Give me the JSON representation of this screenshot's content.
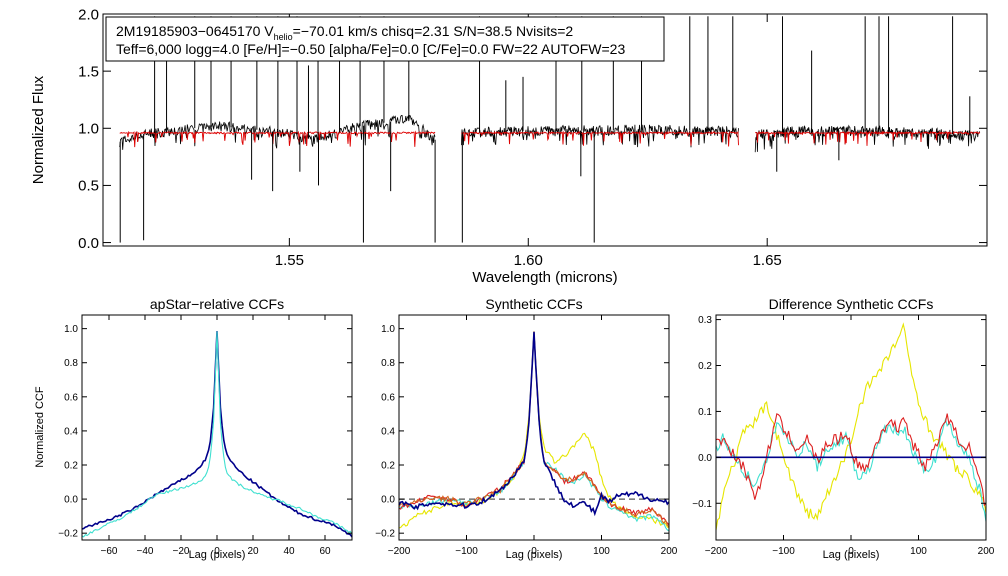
{
  "info_box": {
    "line1_prefix": "2M19185903−0645170  V",
    "line1_sub": "helio",
    "line1_suffix": "=−70.01 km/s  chisq=2.31  S/N=38.5  Nvisits=2",
    "line2": "Teff=6,000 logg=4.0 [Fe/H]=−0.50 [alpha/Fe]=0.0 [C/Fe]=0.0 FW=22 AUTOFW=23"
  },
  "colors": {
    "spectrum": "#000000",
    "model": "#dd0000",
    "navy": "#00008b",
    "cyan": "#40e0d0",
    "yellow": "#e6e600",
    "red": "#dd2222",
    "orange": "#d2691e",
    "green": "#22aa22",
    "zero_line": "#555555"
  },
  "chart_data": [
    {
      "id": "spectrum",
      "type": "line",
      "title": "",
      "xlabel": "Wavelength (microns)",
      "ylabel": "Normalized Flux",
      "xlim": [
        1.511,
        1.696
      ],
      "ylim": [
        -0.03,
        2.0
      ],
      "xticks": [
        1.55,
        1.6,
        1.65
      ],
      "xtick_labels": [
        "1.55",
        "1.60",
        "1.65"
      ],
      "yticks": [
        0.0,
        0.5,
        1.0,
        1.5,
        2.0
      ],
      "ytick_labels": [
        "0.0",
        "0.5",
        "1.0",
        "1.5",
        "2.0"
      ],
      "chips": [
        {
          "range": [
            1.5145,
            1.5805
          ],
          "x": [
            1.5145,
            1.519,
            1.525,
            1.53,
            1.535,
            1.54,
            1.545,
            1.55,
            1.555,
            1.56,
            1.565,
            1.57,
            1.575,
            1.5805
          ],
          "y": [
            0.88,
            0.95,
            0.97,
            1.0,
            1.02,
            1.0,
            0.98,
            0.95,
            0.9,
            0.96,
            1.02,
            1.05,
            1.08,
            0.9
          ]
        },
        {
          "range": [
            1.586,
            1.644
          ],
          "x": [
            1.586,
            1.595,
            1.605,
            1.615,
            1.625,
            1.635,
            1.644
          ],
          "y": [
            0.96,
            0.97,
            0.98,
            0.98,
            0.99,
            0.98,
            0.97
          ]
        },
        {
          "range": [
            1.6475,
            1.6945
          ],
          "x": [
            1.6475,
            1.655,
            1.665,
            1.675,
            1.685,
            1.6945
          ],
          "y": [
            0.95,
            0.97,
            0.98,
            0.97,
            0.96,
            0.93
          ]
        }
      ],
      "model_level": 0.96,
      "emission_spikes": [
        {
          "x": 1.5218,
          "y": 1.98
        },
        {
          "x": 1.5243,
          "y": 1.62
        },
        {
          "x": 1.5302,
          "y": 1.98
        },
        {
          "x": 1.5336,
          "y": 1.98
        },
        {
          "x": 1.5378,
          "y": 1.98
        },
        {
          "x": 1.5432,
          "y": 1.98
        },
        {
          "x": 1.5476,
          "y": 1.98
        },
        {
          "x": 1.5516,
          "y": 1.98
        },
        {
          "x": 1.554,
          "y": 1.55
        },
        {
          "x": 1.556,
          "y": 1.75
        },
        {
          "x": 1.5605,
          "y": 1.62
        },
        {
          "x": 1.5648,
          "y": 1.98
        },
        {
          "x": 1.5698,
          "y": 1.98
        },
        {
          "x": 1.575,
          "y": 1.62
        },
        {
          "x": 1.5898,
          "y": 1.98
        },
        {
          "x": 1.5953,
          "y": 1.42
        },
        {
          "x": 1.5989,
          "y": 1.45
        },
        {
          "x": 1.6058,
          "y": 1.98
        },
        {
          "x": 1.6112,
          "y": 1.98
        },
        {
          "x": 1.6178,
          "y": 1.98
        },
        {
          "x": 1.6237,
          "y": 1.98
        },
        {
          "x": 1.6338,
          "y": 1.98
        },
        {
          "x": 1.6376,
          "y": 1.98
        },
        {
          "x": 1.6428,
          "y": 1.98
        },
        {
          "x": 1.6532,
          "y": 1.98
        },
        {
          "x": 1.6593,
          "y": 1.68
        },
        {
          "x": 1.6705,
          "y": 1.98
        },
        {
          "x": 1.6734,
          "y": 1.98
        },
        {
          "x": 1.6754,
          "y": 1.98
        },
        {
          "x": 1.6888,
          "y": 1.98
        },
        {
          "x": 1.6924,
          "y": 1.28
        }
      ],
      "absorption_spikes": [
        {
          "x": 1.5146,
          "y": 0.0
        },
        {
          "x": 1.5195,
          "y": 0.02
        },
        {
          "x": 1.5421,
          "y": 0.55
        },
        {
          "x": 1.5465,
          "y": 0.45
        },
        {
          "x": 1.5522,
          "y": 0.62
        },
        {
          "x": 1.5561,
          "y": 0.5
        },
        {
          "x": 1.5655,
          "y": 0.0
        },
        {
          "x": 1.5712,
          "y": 0.45
        },
        {
          "x": 1.5805,
          "y": 0.0
        },
        {
          "x": 1.5862,
          "y": 0.0
        },
        {
          "x": 1.611,
          "y": 0.58
        },
        {
          "x": 1.6138,
          "y": 0.0
        },
        {
          "x": 1.652,
          "y": 0.62
        },
        {
          "x": 1.665,
          "y": 0.72
        }
      ]
    },
    {
      "id": "apstar-ccf",
      "type": "line",
      "title": "apStar−relative CCFs",
      "xlabel": "Lag (pixels)",
      "ylabel": "Normalized CCF",
      "xlim": [
        -75,
        75
      ],
      "ylim": [
        -0.24,
        1.08
      ],
      "xticks": [
        -60,
        -40,
        -20,
        0,
        20,
        40,
        60
      ],
      "xtick_labels": [
        "−60",
        "−40",
        "−20",
        "0",
        "20",
        "40",
        "60"
      ],
      "yticks": [
        -0.2,
        0.0,
        0.2,
        0.4,
        0.6,
        0.8,
        1.0
      ],
      "ytick_labels": [
        "−0.2",
        "0.0",
        "0.2",
        "0.4",
        "0.6",
        "0.8",
        "1.0"
      ],
      "series": [
        {
          "name": "navy",
          "color_key": "navy",
          "x": [
            -75,
            -65,
            -55,
            -45,
            -35,
            -25,
            -15,
            -10,
            -6,
            -4,
            -2,
            -1,
            0,
            1,
            2,
            4,
            6,
            10,
            15,
            25,
            35,
            45,
            55,
            65,
            75
          ],
          "y": [
            -0.17,
            -0.14,
            -0.1,
            -0.05,
            0.02,
            0.08,
            0.14,
            0.18,
            0.24,
            0.32,
            0.5,
            0.75,
            0.99,
            0.75,
            0.5,
            0.32,
            0.25,
            0.19,
            0.14,
            0.06,
            -0.02,
            -0.08,
            -0.12,
            -0.15,
            -0.22
          ]
        },
        {
          "name": "cyan",
          "color_key": "cyan",
          "x": [
            -75,
            -65,
            -55,
            -45,
            -35,
            -25,
            -15,
            -10,
            -6,
            -4,
            -2,
            -1,
            0,
            1,
            2,
            4,
            6,
            10,
            15,
            25,
            35,
            45,
            55,
            65,
            75
          ],
          "y": [
            -0.22,
            -0.17,
            -0.12,
            -0.06,
            0.02,
            0.05,
            0.08,
            0.1,
            0.14,
            0.22,
            0.42,
            0.7,
            0.99,
            0.7,
            0.42,
            0.22,
            0.14,
            0.1,
            0.07,
            0.02,
            -0.01,
            -0.05,
            -0.1,
            -0.14,
            -0.2
          ]
        }
      ]
    },
    {
      "id": "synthetic-ccf",
      "type": "line",
      "title": "Synthetic CCFs",
      "xlabel": "Lag (pixels)",
      "ylabel": "",
      "xlim": [
        -200,
        200
      ],
      "ylim": [
        -0.24,
        1.08
      ],
      "xticks": [
        -200,
        -100,
        0,
        100,
        200
      ],
      "xtick_labels": [
        "−200",
        "−100",
        "0",
        "100",
        "200"
      ],
      "yticks": [
        -0.2,
        0.0,
        0.2,
        0.4,
        0.6,
        0.8,
        1.0
      ],
      "ytick_labels": [
        "−0.2",
        "0.0",
        "0.2",
        "0.4",
        "0.6",
        "0.8",
        "1.0"
      ],
      "zero_line": 0.0,
      "series": [
        {
          "name": "yellow",
          "color_key": "yellow",
          "x": [
            -200,
            -175,
            -150,
            -125,
            -100,
            -75,
            -50,
            -30,
            -15,
            -8,
            -3,
            0,
            3,
            8,
            15,
            30,
            45,
            60,
            75,
            90,
            100,
            110,
            125,
            150,
            175,
            200
          ],
          "y": [
            -0.18,
            -0.1,
            -0.06,
            -0.02,
            -0.03,
            -0.01,
            0.05,
            0.13,
            0.25,
            0.45,
            0.78,
            0.99,
            0.78,
            0.45,
            0.3,
            0.22,
            0.25,
            0.32,
            0.38,
            0.28,
            0.12,
            0.02,
            -0.05,
            -0.1,
            -0.12,
            -0.16
          ]
        },
        {
          "name": "cyan",
          "color_key": "cyan",
          "x": [
            -200,
            -175,
            -150,
            -125,
            -100,
            -75,
            -50,
            -30,
            -15,
            -8,
            -3,
            0,
            3,
            8,
            15,
            30,
            45,
            60,
            75,
            90,
            100,
            110,
            125,
            150,
            175,
            200
          ],
          "y": [
            -0.05,
            -0.04,
            -0.02,
            0.0,
            -0.02,
            0.0,
            0.04,
            0.14,
            0.22,
            0.42,
            0.75,
            0.99,
            0.75,
            0.42,
            0.22,
            0.18,
            0.12,
            0.1,
            0.14,
            0.06,
            0.0,
            -0.04,
            -0.06,
            -0.12,
            -0.1,
            -0.18
          ]
        },
        {
          "name": "red",
          "color_key": "red",
          "x": [
            -200,
            -175,
            -150,
            -125,
            -100,
            -75,
            -50,
            -30,
            -15,
            -8,
            -3,
            0,
            3,
            8,
            15,
            30,
            45,
            60,
            75,
            90,
            100,
            110,
            125,
            150,
            175,
            200
          ],
          "y": [
            -0.05,
            -0.02,
            0.02,
            0.0,
            -0.04,
            0.01,
            0.06,
            0.15,
            0.22,
            0.42,
            0.75,
            0.99,
            0.75,
            0.42,
            0.22,
            0.17,
            0.1,
            0.12,
            0.16,
            0.08,
            0.02,
            -0.02,
            -0.05,
            -0.08,
            -0.06,
            -0.14
          ]
        },
        {
          "name": "orange",
          "color_key": "orange",
          "x": [
            -200,
            -175,
            -150,
            -125,
            -100,
            -75,
            -50,
            -30,
            -15,
            -8,
            -3,
            0,
            3,
            8,
            15,
            30,
            45,
            60,
            75,
            90,
            100,
            110,
            125,
            150,
            175,
            200
          ],
          "y": [
            -0.04,
            -0.02,
            0.01,
            0.0,
            -0.03,
            0.01,
            0.05,
            0.15,
            0.22,
            0.42,
            0.75,
            0.99,
            0.75,
            0.42,
            0.22,
            0.17,
            0.11,
            0.12,
            0.15,
            0.08,
            0.02,
            -0.02,
            -0.05,
            -0.09,
            -0.07,
            -0.15
          ]
        },
        {
          "name": "navy",
          "color_key": "navy",
          "x": [
            -200,
            -175,
            -150,
            -125,
            -100,
            -75,
            -50,
            -30,
            -15,
            -8,
            -3,
            0,
            3,
            8,
            15,
            30,
            45,
            60,
            75,
            90,
            100,
            110,
            125,
            150,
            175,
            200
          ],
          "y": [
            -0.02,
            -0.05,
            -0.02,
            -0.03,
            -0.04,
            -0.01,
            0.05,
            0.14,
            0.22,
            0.42,
            0.75,
            0.99,
            0.75,
            0.42,
            0.22,
            0.1,
            0.0,
            -0.04,
            -0.02,
            -0.08,
            0.02,
            -0.02,
            0.02,
            0.03,
            0.0,
            -0.02
          ]
        }
      ]
    },
    {
      "id": "difference-ccf",
      "type": "line",
      "title": "Difference Synthetic CCFs",
      "xlabel": "Lag (pixels)",
      "ylabel": "",
      "xlim": [
        -200,
        200
      ],
      "ylim": [
        -0.18,
        0.31
      ],
      "xticks": [
        -200,
        -100,
        0,
        100,
        200
      ],
      "xtick_labels": [
        "−200",
        "−100",
        "0",
        "100",
        "200"
      ],
      "yticks": [
        -0.1,
        0.0,
        0.1,
        0.2,
        0.3
      ],
      "ytick_labels": [
        "−0.1",
        "0.0",
        "0.1",
        "0.2",
        "0.3"
      ],
      "zero_line": 0.0,
      "series": [
        {
          "name": "yellow",
          "color_key": "yellow",
          "x": [
            -200,
            -190,
            -175,
            -160,
            -140,
            -125,
            -110,
            -95,
            -80,
            -65,
            -50,
            -35,
            -20,
            -5,
            0,
            10,
            25,
            40,
            55,
            70,
            78,
            85,
            95,
            110,
            125,
            140,
            160,
            175,
            190,
            200
          ],
          "y": [
            -0.16,
            -0.08,
            -0.02,
            0.05,
            0.08,
            0.12,
            0.05,
            -0.02,
            -0.08,
            -0.12,
            -0.13,
            -0.08,
            -0.04,
            0.02,
            0.03,
            0.1,
            0.16,
            0.18,
            0.22,
            0.26,
            0.28,
            0.22,
            0.15,
            0.08,
            0.04,
            0.01,
            -0.03,
            -0.05,
            -0.08,
            -0.12
          ]
        },
        {
          "name": "cyan",
          "color_key": "cyan",
          "x": [
            -200,
            -190,
            -175,
            -160,
            -140,
            -125,
            -110,
            -95,
            -80,
            -65,
            -50,
            -35,
            -20,
            -5,
            0,
            10,
            25,
            40,
            55,
            70,
            78,
            85,
            95,
            110,
            125,
            140,
            160,
            175,
            190,
            200
          ],
          "y": [
            0.02,
            0.04,
            0.01,
            -0.03,
            -0.06,
            -0.01,
            0.08,
            0.04,
            0.01,
            0.03,
            -0.02,
            0.02,
            0.03,
            0.05,
            0.0,
            -0.04,
            -0.03,
            0.03,
            0.07,
            0.05,
            0.06,
            0.04,
            0.0,
            -0.03,
            0.0,
            0.08,
            0.03,
            0.0,
            -0.07,
            -0.13
          ]
        },
        {
          "name": "red",
          "color_key": "red",
          "x": [
            -200,
            -190,
            -175,
            -160,
            -140,
            -125,
            -110,
            -95,
            -80,
            -65,
            -50,
            -35,
            -20,
            -5,
            0,
            10,
            25,
            40,
            55,
            70,
            78,
            85,
            95,
            110,
            125,
            140,
            160,
            175,
            190,
            200
          ],
          "y": [
            0.03,
            0.04,
            0.01,
            -0.02,
            -0.09,
            0.0,
            0.09,
            0.05,
            0.02,
            0.04,
            -0.01,
            0.03,
            0.04,
            0.05,
            0.02,
            -0.02,
            -0.02,
            0.04,
            0.08,
            0.06,
            0.1,
            0.05,
            0.02,
            -0.02,
            0.02,
            0.09,
            0.04,
            0.02,
            -0.05,
            -0.11
          ]
        },
        {
          "name": "navy",
          "color_key": "navy",
          "x": [
            -200,
            200
          ],
          "y": [
            0.0,
            0.0
          ]
        }
      ]
    }
  ]
}
